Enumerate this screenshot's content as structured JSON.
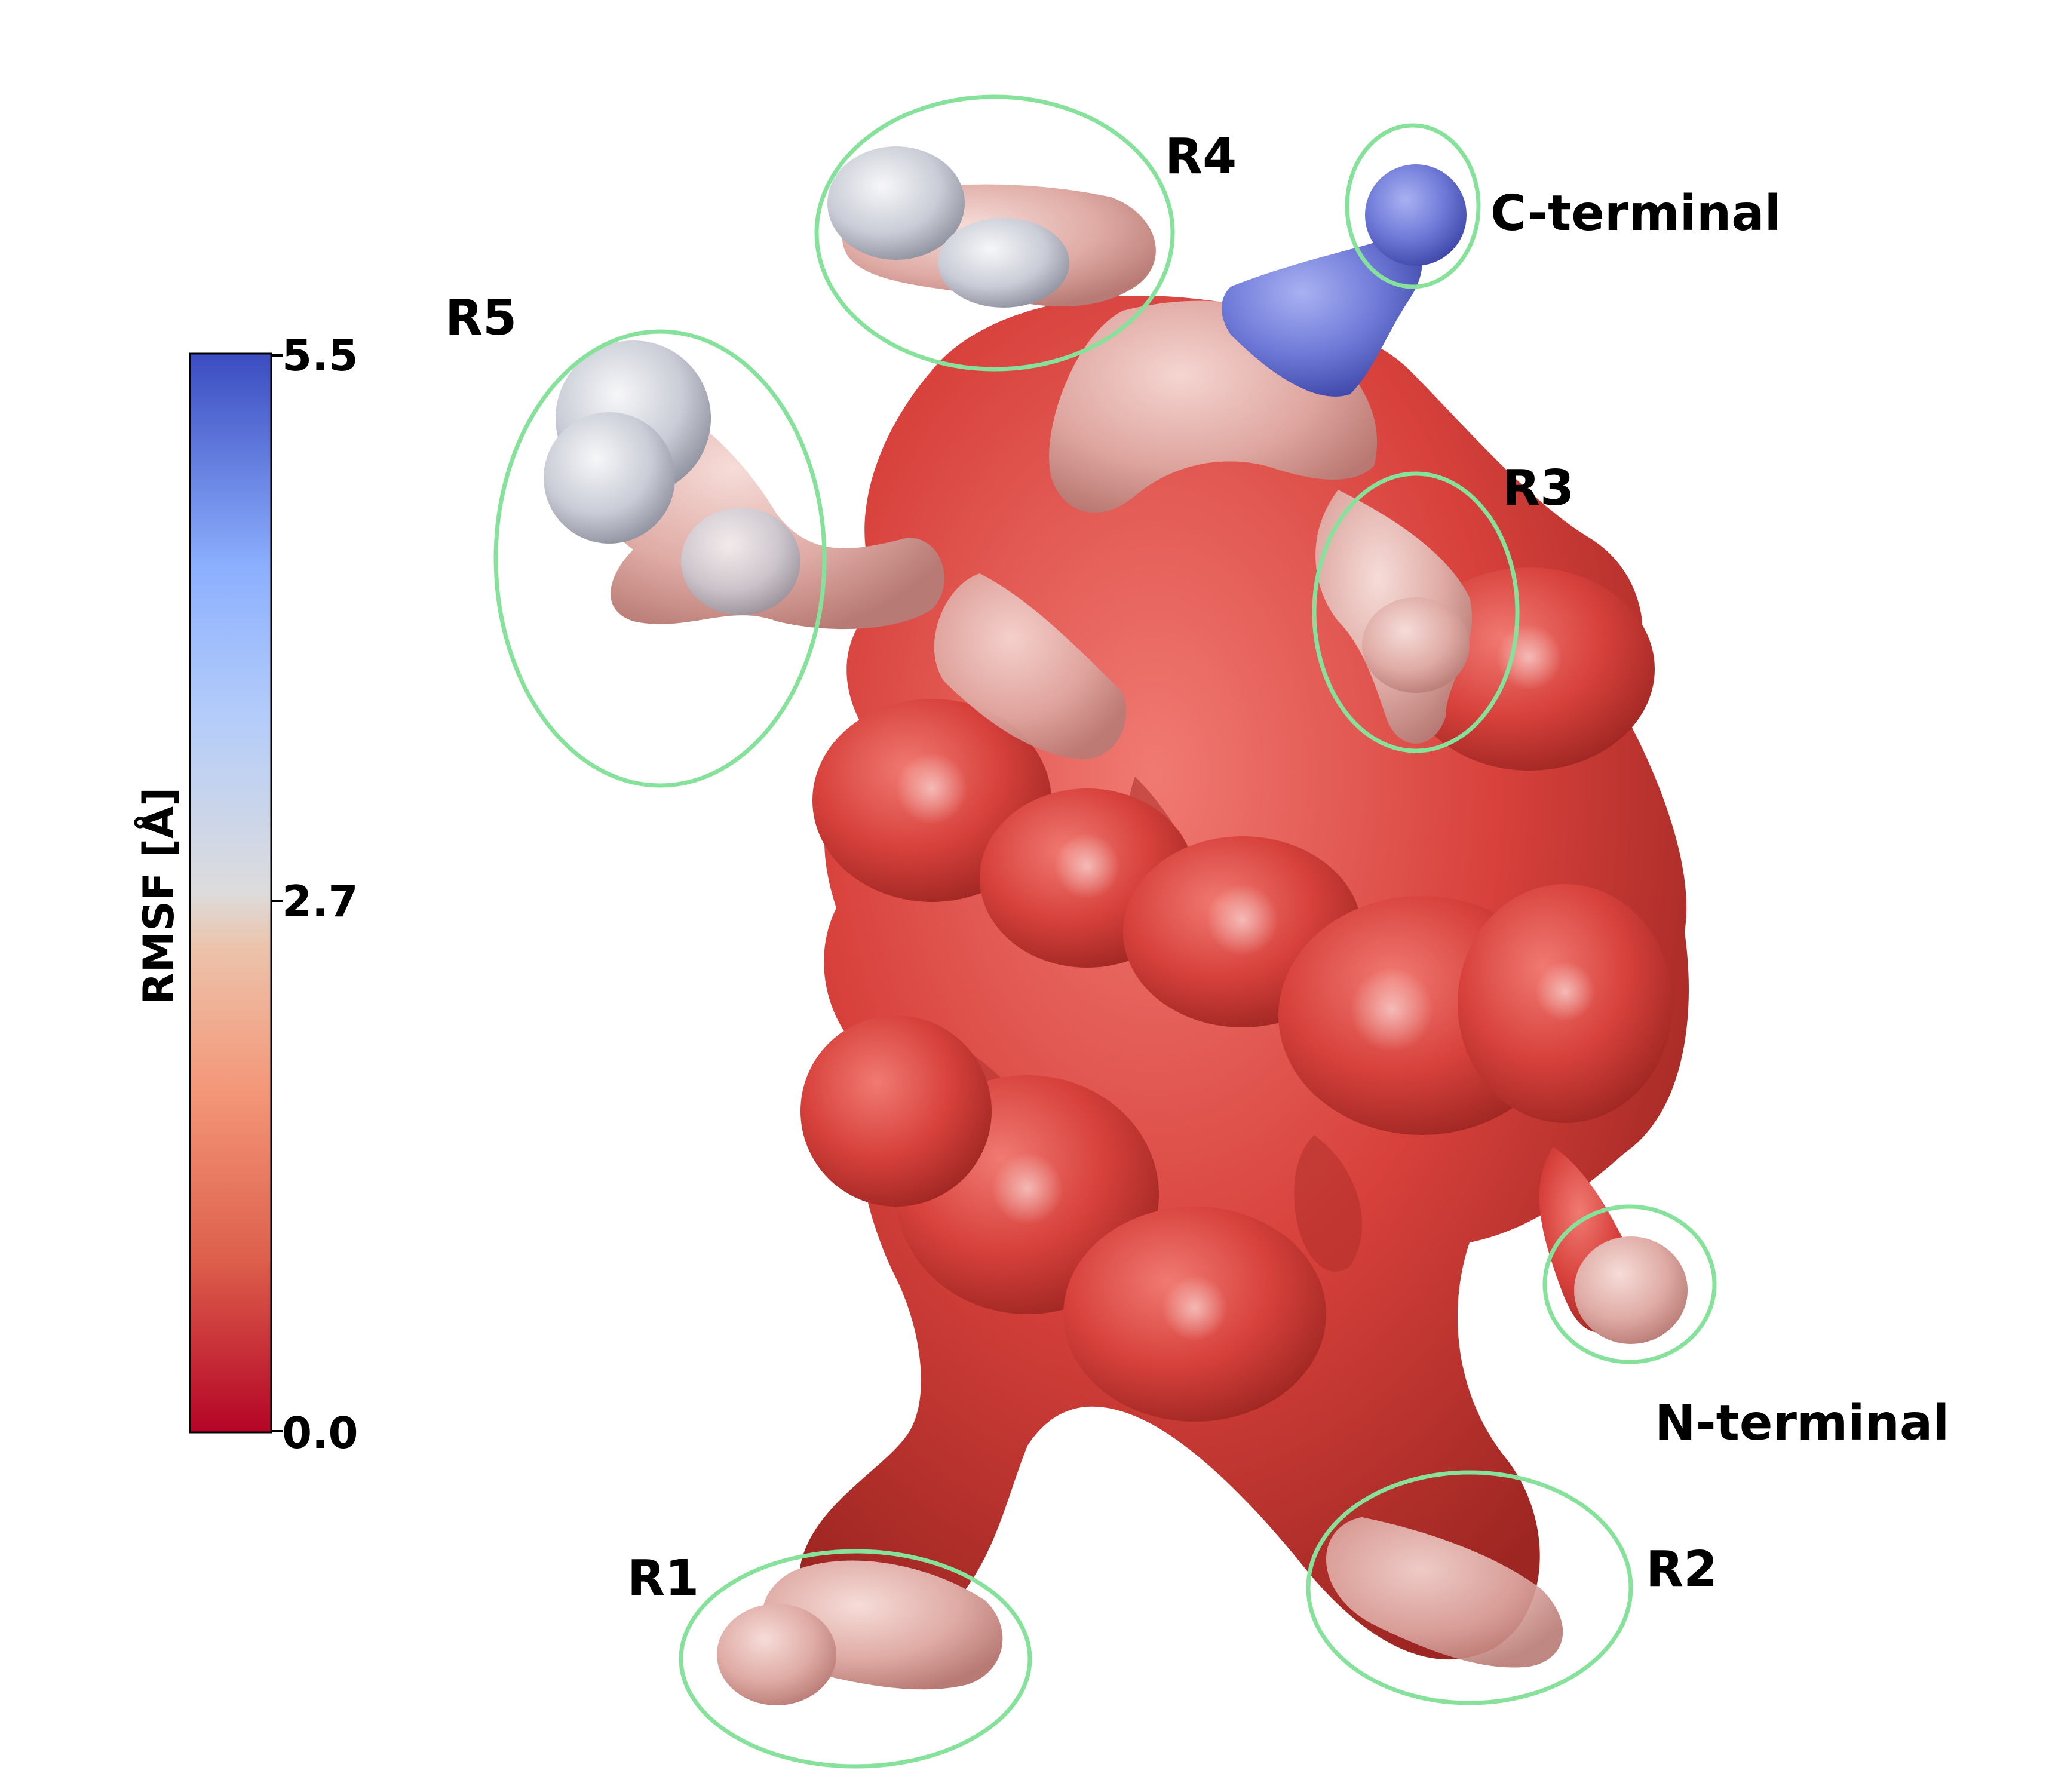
{
  "colorbar": {
    "axis_label": "RMSF [Å]",
    "ticks": [
      {
        "value": 5.5,
        "label": "5.5"
      },
      {
        "value": 2.7,
        "label": "2.7"
      },
      {
        "value": 0.0,
        "label": "0.0"
      }
    ],
    "colors": [
      "#b40426",
      "#dd5f4b",
      "#f4987a",
      "#e8d0c2",
      "#dddcdc",
      "#b5cdfa",
      "#8db0fe",
      "#3b4cc0"
    ]
  },
  "regions": {
    "r1": "R1",
    "r2": "R2",
    "r3": "R3",
    "r4": "R4",
    "r5": "R5",
    "c_terminal": "C-terminal",
    "n_terminal": "N-terminal"
  },
  "style": {
    "circle_color": "#86e29b",
    "protein_base": "#d8413c",
    "protein_flexible": "#e6c2bd",
    "protein_mobile": "#6f7ad8"
  }
}
